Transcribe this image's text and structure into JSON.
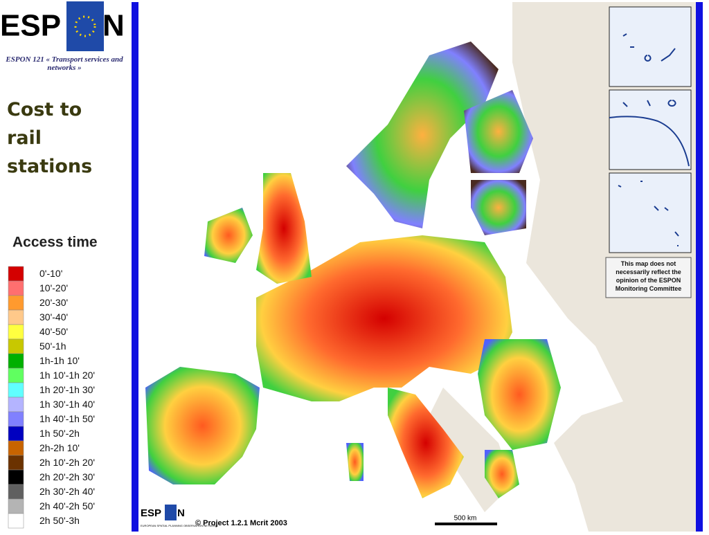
{
  "header": {
    "logo_left": "ESP",
    "logo_right": "N",
    "subtitle": "ESPON 121 « Transport services and networks »",
    "title": "Cost to rail stations"
  },
  "legend": {
    "title": "Access time",
    "items": [
      {
        "label": "0'-10'",
        "color": "#d40000"
      },
      {
        "label": "10'-20'",
        "color": "#ff6f6f"
      },
      {
        "label": "20'-30'",
        "color": "#ff9a2e"
      },
      {
        "label": "30'-40'",
        "color": "#ffc98a"
      },
      {
        "label": "40'-50'",
        "color": "#ffff40"
      },
      {
        "label": "50'-1h",
        "color": "#c8c800"
      },
      {
        "label": "1h-1h 10'",
        "color": "#00b000"
      },
      {
        "label": "1h 10'-1h 20'",
        "color": "#60ff60"
      },
      {
        "label": "1h 20'-1h 30'",
        "color": "#60ffff"
      },
      {
        "label": "1h 30'-1h 40'",
        "color": "#b4b4ff"
      },
      {
        "label": "1h 40'-1h 50'",
        "color": "#8080ff"
      },
      {
        "label": "1h 50'-2h",
        "color": "#0000c0"
      },
      {
        "label": "2h-2h 10'",
        "color": "#c86400"
      },
      {
        "label": "2h 10'-2h 20'",
        "color": "#6b3200"
      },
      {
        "label": "2h 20'-2h 30'",
        "color": "#000000"
      },
      {
        "label": "2h 30'-2h 40'",
        "color": "#606060"
      },
      {
        "label": "2h 40'-2h 50'",
        "color": "#b4b4b4"
      },
      {
        "label": "2h 50'-3h",
        "color": "#ffffff"
      }
    ]
  },
  "map": {
    "disclaimer": "This map does not necessarily reflect the opinion of the ESPON Monitoring Committee",
    "credit": "© Project 1.2.1 Mcrit 2003",
    "scale": "500 km",
    "logo": "ESP",
    "logo_n": "N",
    "logo_caption": "EUROPEAN SPATIAL PLANNING OBSERVATION NETWORK"
  }
}
